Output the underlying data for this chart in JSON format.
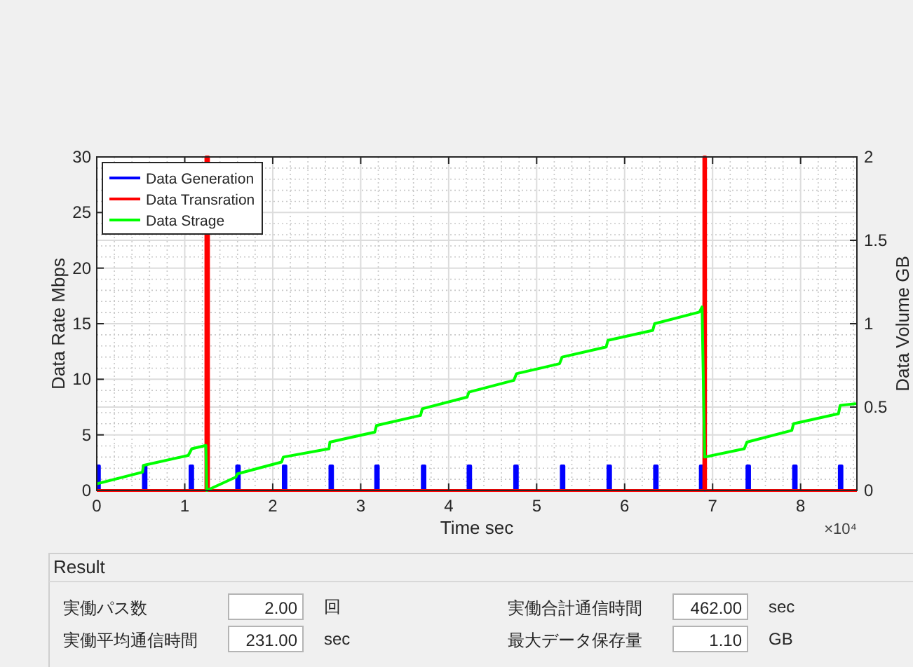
{
  "chart_data": [
    {
      "type": "line",
      "xlabel": "Time sec",
      "ylabel": "Data Rate Mbps",
      "y2label": "Data Volume GB",
      "xlim": [
        0,
        8.64
      ],
      "xticks": [
        0,
        1,
        2,
        3,
        4,
        5,
        6,
        7,
        8
      ],
      "ylim": [
        0,
        30
      ],
      "yticks": [
        0,
        5,
        10,
        15,
        20,
        25,
        30
      ],
      "y2lim": [
        0,
        2
      ],
      "y2ticks": [
        0,
        0.5,
        1,
        1.5,
        2
      ],
      "grid": true,
      "legend": "top left",
      "line_style": "solid",
      "annotations": [
        "×10⁴"
      ],
      "series": [
        {
          "name": "Data Generation",
          "color": "#0000ff",
          "x": [
            0,
            0,
            0.03,
            0.03,
            0.53,
            0.53,
            0.56,
            0.56,
            1.06,
            1.06,
            1.09,
            1.09,
            1.59,
            1.59,
            1.62,
            1.62,
            2.12,
            2.12,
            2.15,
            2.15,
            2.65,
            2.65,
            2.68,
            2.68,
            3.17,
            3.17,
            3.2,
            3.2,
            3.7,
            3.7,
            3.73,
            3.73,
            4.22,
            4.22,
            4.25,
            4.25,
            4.75,
            4.75,
            4.78,
            4.78,
            5.28,
            5.28,
            5.31,
            5.31,
            5.81,
            5.81,
            5.84,
            5.84,
            6.34,
            6.34,
            6.37,
            6.37,
            6.86,
            6.86,
            6.89,
            6.89,
            7.39,
            7.39,
            7.42,
            7.42,
            7.92,
            7.92,
            7.95,
            7.95,
            8.44,
            8.44,
            8.47,
            8.47,
            8.64
          ],
          "values": [
            0,
            2.2,
            2.2,
            0,
            0,
            2.2,
            2.2,
            0,
            0,
            2.2,
            2.2,
            0,
            0,
            2.2,
            2.2,
            0,
            0,
            2.2,
            2.2,
            0,
            0,
            2.2,
            2.2,
            0,
            0,
            2.2,
            2.2,
            0,
            0,
            2.2,
            2.2,
            0,
            0,
            2.2,
            2.2,
            0,
            0,
            2.2,
            2.2,
            0,
            0,
            2.2,
            2.2,
            0,
            0,
            2.2,
            2.2,
            0,
            0,
            2.2,
            2.2,
            0,
            0,
            2.2,
            2.2,
            0,
            0,
            2.2,
            2.2,
            0,
            0,
            2.2,
            2.2,
            0,
            0,
            2.2,
            2.2,
            0,
            0
          ]
        },
        {
          "name": "Data Transration",
          "color": "#ff0000",
          "x": [
            0,
            1.24,
            1.24,
            1.27,
            1.27,
            6.9,
            6.9,
            6.92,
            6.92,
            8.64
          ],
          "values": [
            0,
            0,
            30,
            30,
            0,
            0,
            30,
            30,
            0,
            0
          ]
        },
        {
          "name": "Data Strage",
          "color": "#00ff00",
          "axis": "y2",
          "x": [
            0,
            0.52,
            0.53,
            1.04,
            1.08,
            1.24,
            1.25,
            1.58,
            1.6,
            2.1,
            2.12,
            2.64,
            2.65,
            3.16,
            3.18,
            3.68,
            3.7,
            4.21,
            4.23,
            4.74,
            4.77,
            5.26,
            5.29,
            5.79,
            5.81,
            6.32,
            6.34,
            6.85,
            6.88,
            6.91,
            7.36,
            7.39,
            7.9,
            7.92,
            8.43,
            8.45,
            8.62
          ],
          "values": [
            0.04,
            0.11,
            0.15,
            0.21,
            0.25,
            0.27,
            0,
            0.08,
            0.1,
            0.17,
            0.2,
            0.25,
            0.29,
            0.35,
            0.39,
            0.45,
            0.49,
            0.56,
            0.59,
            0.66,
            0.7,
            0.76,
            0.8,
            0.86,
            0.9,
            0.96,
            1.0,
            1.07,
            1.1,
            0.2,
            0.25,
            0.29,
            0.36,
            0.4,
            0.46,
            0.51,
            0.52
          ]
        }
      ]
    },
    {
      "type": "other",
      "title": "Result",
      "annotations": [
        "実働パス数",
        "2.00",
        "回",
        "実働合計通信時間",
        "462.00",
        "sec",
        "実働平均通信時間",
        "231.00",
        "sec",
        "最大データ保存量",
        "1.10",
        "GB"
      ]
    }
  ]
}
